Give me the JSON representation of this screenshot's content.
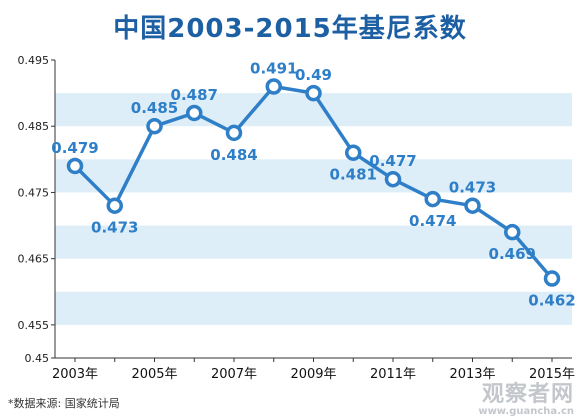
{
  "chart_data": {
    "type": "line",
    "title": "中国2003-2015年基尼系数",
    "xlabel": "",
    "ylabel": "",
    "x": [
      2003,
      2004,
      2005,
      2006,
      2007,
      2008,
      2009,
      2010,
      2011,
      2012,
      2013,
      2014,
      2015
    ],
    "values": [
      0.479,
      0.473,
      0.485,
      0.487,
      0.484,
      0.491,
      0.49,
      0.481,
      0.477,
      0.474,
      0.473,
      0.469,
      0.462
    ],
    "data_labels": [
      "0.479",
      "0.473",
      "0.485",
      "0.487",
      "0.484",
      "0.491",
      "0.49",
      "0.481",
      "0.477",
      "0.474",
      "0.473",
      "0.469",
      "0.462"
    ],
    "label_sides": [
      "above",
      "below",
      "above",
      "above",
      "below",
      "above",
      "above",
      "below",
      "above",
      "below",
      "above",
      "below",
      "below"
    ],
    "x_tick_labels": [
      "2003年",
      "2005年",
      "2007年",
      "2009年",
      "2011年",
      "2013年",
      "2015年"
    ],
    "y_ticks": [
      0.45,
      0.455,
      0.465,
      0.475,
      0.485,
      0.495
    ],
    "y_tick_labels": [
      "0.45",
      "0.455",
      "0.465",
      "0.475",
      "0.485",
      "0.495"
    ],
    "ylim": [
      0.45,
      0.495
    ],
    "grid": "horizontal bands",
    "colors": {
      "line": "#2f7fc8",
      "marker_fill": "#ffffff",
      "band": "#ddeef8",
      "title": "#1d5fa3",
      "label": "#2f7fc8"
    }
  },
  "source_note": "*数据来源: 国家统计局",
  "watermark": {
    "name": "观察者网",
    "url": "www.guancha.cn"
  }
}
